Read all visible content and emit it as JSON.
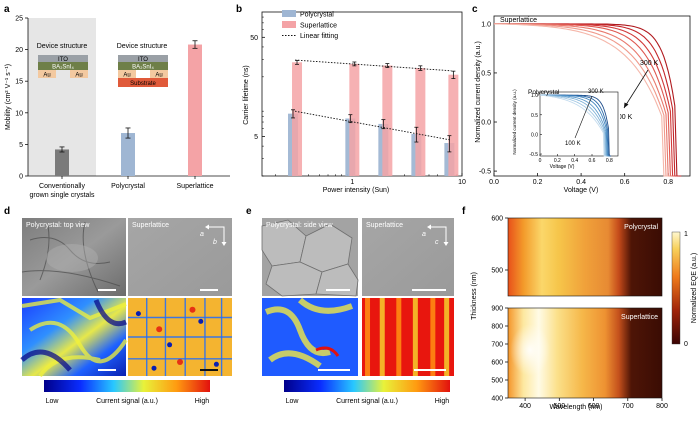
{
  "colors": {
    "polycrystal": "#9fb6d3",
    "superlattice": "#f4a3a6",
    "conventional": "#7a7a7a",
    "panel_bg": "#e6e6e6",
    "red_dark": "#b0191e",
    "blue_dark": "#1f4e8c"
  },
  "panel_labels": [
    "a",
    "b",
    "c",
    "d",
    "e",
    "f"
  ],
  "a": {
    "ylabel": "Mobility (cm² V⁻¹ s⁻¹)",
    "yticks": [
      "0",
      "5",
      "10",
      "15",
      "20",
      "25"
    ],
    "device_titles": [
      "Device structure",
      "Device structure"
    ],
    "stack_left": {
      "ito": "ITO",
      "layer": "BA₂SnI₄",
      "au1": "Au",
      "au2": "Au"
    },
    "stack_right": {
      "ito": "ITO",
      "layer": "BA₂SnI₄",
      "au1": "Au",
      "au2": "Au",
      "substrate": "Substrate"
    },
    "categories": [
      "Conventionally grown single crystals",
      "Polycrystal",
      "Superlattice"
    ],
    "category_lines": [
      [
        "Conventionally",
        "grown single crystals"
      ],
      [
        "Polycrystal"
      ],
      [
        "Superlattice"
      ]
    ]
  },
  "b": {
    "ylabel": "Carrier lifetime (ns)",
    "xlabel": "Power intensity (Sun)",
    "yticks": [
      "5",
      "50"
    ],
    "xticks": [
      "1",
      "10"
    ],
    "legend": [
      "Polycrystal",
      "Superlattice",
      "Linear fitting"
    ]
  },
  "c": {
    "title": "Superlattice",
    "ylabel": "Normalized current density (a.u.)",
    "xlabel": "Voltage (V)",
    "yticks": [
      "-0.5",
      "0.0",
      "0.5",
      "1.0"
    ],
    "xticks": [
      "0.0",
      "0.2",
      "0.4",
      "0.6",
      "0.8"
    ],
    "ann_300": "300 K",
    "ann_100": "100 K",
    "inset": {
      "title": "Polycrystal",
      "ylabel": "Normalized current density (a.u.)",
      "xlabel": "Voltage (V)",
      "yticks": [
        "-0.5",
        "0.0",
        "0.5",
        "1.0"
      ],
      "xticks": [
        "0",
        "0.2",
        "0.4",
        "0.6",
        "0.8"
      ],
      "ann_300": "300 K",
      "ann_100": "100 K"
    }
  },
  "d": {
    "top_left": "Polycrystal: top view",
    "top_right": "Superlattice",
    "axis_a": "a",
    "axis_b": "b",
    "cbar_low": "Low",
    "cbar_mid": "Current signal (a.u.)",
    "cbar_high": "High"
  },
  "e": {
    "top_left": "Polycrystal: side view",
    "top_right": "Superlattice",
    "axis_a": "a",
    "axis_c": "c",
    "cbar_low": "Low",
    "cbar_mid": "Current signal (a.u.)",
    "cbar_high": "High"
  },
  "f": {
    "ylabel": "Thickness (nm)",
    "xlabel": "Wavelength (nm)",
    "yticks_top": [
      "500",
      "600"
    ],
    "yticks_bottom": [
      "400",
      "500",
      "600",
      "700",
      "800",
      "900"
    ],
    "yticks_top_full": [
      "500",
      "600"
    ],
    "xticks": [
      "400",
      "500",
      "600",
      "700",
      "800"
    ],
    "label_top": "Polycrystal",
    "label_bottom": "Superlattice",
    "cbar_label": "Normalized EQE (a.u.)",
    "cbar_ticks": [
      "0",
      "1"
    ]
  },
  "chart_data": [
    {
      "type": "bar",
      "panel": "a",
      "categories": [
        "Conventionally grown single crystals",
        "Polycrystal",
        "Superlattice"
      ],
      "values": [
        4.2,
        6.8,
        20.8
      ],
      "errors": [
        0.4,
        0.8,
        0.6
      ],
      "ylabel": "Mobility (cm² V⁻¹ s⁻¹)",
      "ylim": [
        0,
        25
      ]
    },
    {
      "type": "bar",
      "panel": "b",
      "xlabel": "Power intensity (Sun)",
      "ylabel": "Carrier lifetime (ns)",
      "x": [
        0.3,
        1,
        2,
        4,
        8
      ],
      "xscale": "log",
      "yscale": "log",
      "xlim": [
        0.15,
        10
      ],
      "ylim": [
        2,
        90
      ],
      "series": [
        {
          "name": "Polycrystal",
          "values": [
            8.5,
            7.6,
            6.7,
            5.3,
            4.3
          ],
          "errors": [
            0.8,
            0.7,
            0.7,
            0.9,
            0.8
          ]
        },
        {
          "name": "Superlattice",
          "values": [
            28,
            27,
            26,
            24.5,
            21
          ],
          "errors": [
            1.3,
            1.2,
            1.2,
            1.3,
            1.8
          ]
        }
      ],
      "fits": [
        {
          "name": "Linear fitting",
          "x": [
            0.3,
            8
          ],
          "y": [
            9.0,
            4.6
          ]
        },
        {
          "name": "Linear fitting",
          "x": [
            0.3,
            8
          ],
          "y": [
            29.5,
            23.0
          ]
        }
      ]
    },
    {
      "type": "line",
      "panel": "c",
      "title": "Superlattice",
      "xlabel": "Voltage (V)",
      "ylabel": "Normalized current density (a.u.)",
      "xlim": [
        0,
        0.9
      ],
      "ylim": [
        -0.55,
        1.08
      ],
      "series": [
        {
          "name": "300 K",
          "voc": 0.84
        },
        {
          "name": "",
          "voc": 0.83
        },
        {
          "name": "",
          "voc": 0.82
        },
        {
          "name": "",
          "voc": 0.81
        },
        {
          "name": "",
          "voc": 0.8
        },
        {
          "name": "",
          "voc": 0.79
        },
        {
          "name": "100 K",
          "voc": 0.78
        }
      ]
    },
    {
      "type": "line",
      "panel": "c-inset",
      "title": "Polycrystal",
      "xlabel": "Voltage (V)",
      "ylabel": "Normalized current density (a.u.)",
      "xlim": [
        0,
        0.9
      ],
      "ylim": [
        -0.55,
        1.08
      ],
      "series": [
        {
          "name": "300 K",
          "voc": 0.8
        },
        {
          "name": "",
          "voc": 0.79
        },
        {
          "name": "",
          "voc": 0.78
        },
        {
          "name": "",
          "voc": 0.77
        },
        {
          "name": "",
          "voc": 0.76
        },
        {
          "name": "",
          "voc": 0.75
        },
        {
          "name": "100 K",
          "voc": 0.74
        }
      ]
    },
    {
      "type": "heatmap",
      "panel": "f",
      "xlabel": "Wavelength (nm)",
      "ylabel": "Thickness (nm)",
      "xlim": [
        350,
        800
      ],
      "series": [
        {
          "name": "Polycrystal",
          "ylim": [
            450,
            600
          ]
        },
        {
          "name": "Superlattice",
          "ylim": [
            400,
            900
          ]
        }
      ],
      "colorbar": {
        "label": "Normalized EQE (a.u.)",
        "range": [
          0,
          1
        ]
      }
    }
  ]
}
